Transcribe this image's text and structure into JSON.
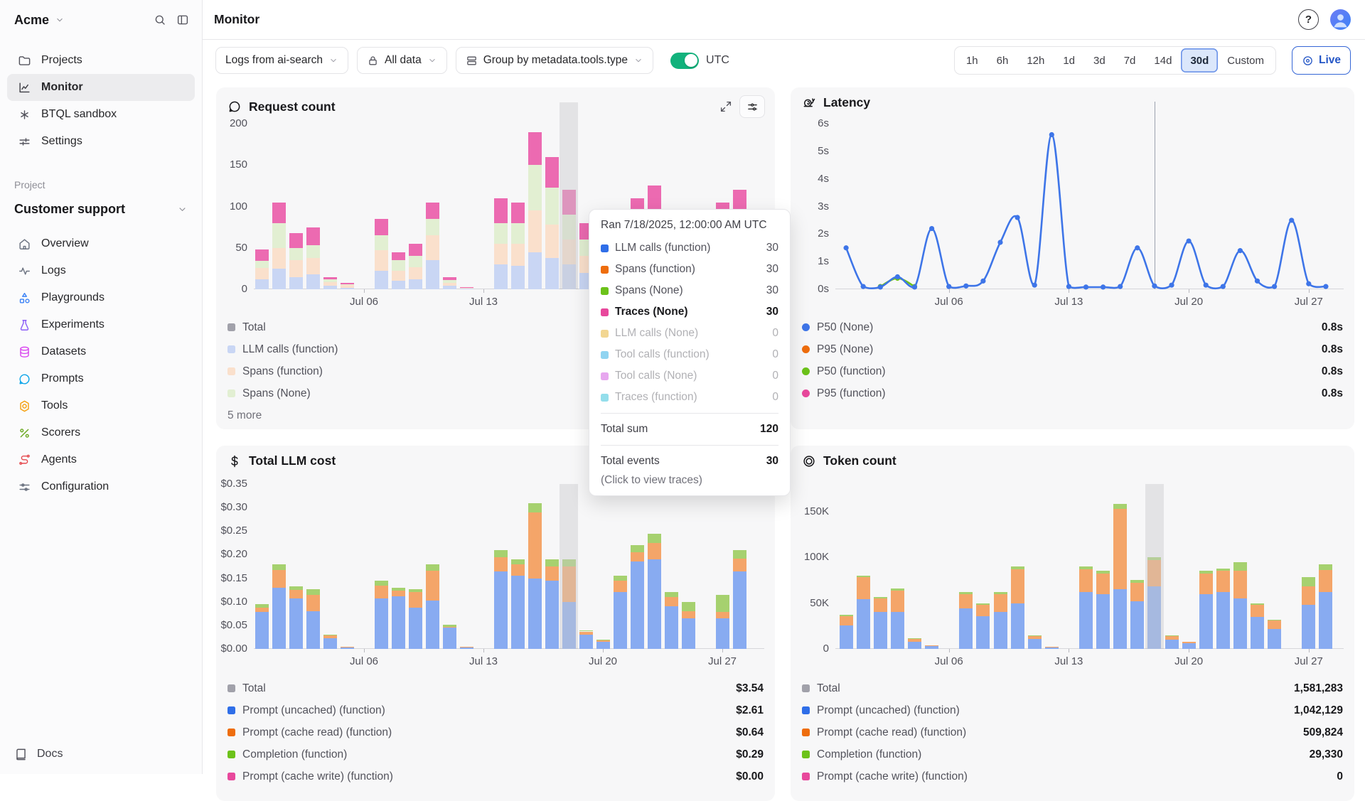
{
  "header": {
    "org": "Acme",
    "page_title": "Monitor"
  },
  "sidebar": {
    "nav": [
      {
        "label": "Projects",
        "icon": "folder-icon",
        "active": false,
        "color": "#52525b"
      },
      {
        "label": "Monitor",
        "icon": "chart-line-icon",
        "active": true,
        "color": "#3f3f46"
      },
      {
        "label": "BTQL sandbox",
        "icon": "asterisk-icon",
        "active": false,
        "color": "#52525b"
      },
      {
        "label": "Settings",
        "icon": "settings-sliders-icon",
        "active": false,
        "color": "#52525b"
      }
    ],
    "project_label": "Project",
    "project_name": "Customer support",
    "items": [
      {
        "label": "Overview",
        "icon": "home-icon",
        "color": "#6b7280"
      },
      {
        "label": "Logs",
        "icon": "pulse-icon",
        "color": "#6b7280"
      },
      {
        "label": "Playgrounds",
        "icon": "shapes-icon",
        "color": "#3b82f6"
      },
      {
        "label": "Experiments",
        "icon": "flask-icon",
        "color": "#8b5cf6"
      },
      {
        "label": "Datasets",
        "icon": "database-icon",
        "color": "#d946ef"
      },
      {
        "label": "Prompts",
        "icon": "chat-icon",
        "color": "#0ea5e9"
      },
      {
        "label": "Tools",
        "icon": "hexagon-icon",
        "color": "#f59e0b"
      },
      {
        "label": "Scorers",
        "icon": "percent-icon",
        "color": "#6ba821"
      },
      {
        "label": "Agents",
        "icon": "agents-icon",
        "color": "#e5484d"
      },
      {
        "label": "Configuration",
        "icon": "config-icon",
        "color": "#6b7280"
      }
    ],
    "docs_label": "Docs"
  },
  "filters": {
    "pills": [
      {
        "label": "Logs from ai-search",
        "icon": null,
        "chevron": true
      },
      {
        "label": "All data",
        "icon": "lock-icon",
        "chevron": true
      },
      {
        "label": "Group by metadata.tools.type",
        "icon": "rows-icon",
        "chevron": true
      }
    ],
    "utc_label": "UTC",
    "utc_on": true,
    "toggle_color": "#12b27c"
  },
  "time_range": {
    "options": [
      "1h",
      "6h",
      "12h",
      "1d",
      "3d",
      "7d",
      "14d",
      "30d",
      "Custom"
    ],
    "active": "30d",
    "live_label": "Live"
  },
  "cards": {
    "request": {
      "title": "Request count",
      "icon": "speech-bubble-icon",
      "legend": [
        {
          "label": "Total",
          "color": "#a1a1aa"
        },
        {
          "label": "LLM calls (function)",
          "color": "#c9d6f4"
        },
        {
          "label": "Spans (function)",
          "color": "#fae0cc"
        },
        {
          "label": "Spans (None)",
          "color": "#e2efd2"
        }
      ],
      "more_label": "5 more"
    },
    "latency": {
      "title": "Latency",
      "icon": "snail-icon",
      "legend": [
        {
          "label": "P50 (None)",
          "value": "0.8s",
          "color": "#3e75e8"
        },
        {
          "label": "P95 (None)",
          "value": "0.8s",
          "color": "#ee6d0d"
        },
        {
          "label": "P50 (function)",
          "value": "0.8s",
          "color": "#6cc21a"
        },
        {
          "label": "P95 (function)",
          "value": "0.8s",
          "color": "#e8489c"
        }
      ]
    },
    "cost": {
      "title": "Total LLM cost",
      "icon": "dollar-icon",
      "legend": [
        {
          "label": "Total",
          "value": "$3.54",
          "color": "#a1a1aa"
        },
        {
          "label": "Prompt (uncached) (function)",
          "value": "$2.61",
          "color": "#2f6ee8"
        },
        {
          "label": "Prompt (cache read) (function)",
          "value": "$0.64",
          "color": "#ee6d0d"
        },
        {
          "label": "Completion (function)",
          "value": "$0.29",
          "color": "#6cc21a"
        },
        {
          "label": "Prompt (cache write) (function)",
          "value": "$0.00",
          "color": "#e8489c"
        }
      ]
    },
    "token": {
      "title": "Token count",
      "icon": "coin-icon",
      "legend": [
        {
          "label": "Total",
          "value": "1,581,283",
          "color": "#a1a1aa"
        },
        {
          "label": "Prompt (uncached) (function)",
          "value": "1,042,129",
          "color": "#2f6ee8"
        },
        {
          "label": "Prompt (cache read) (function)",
          "value": "509,824",
          "color": "#ee6d0d"
        },
        {
          "label": "Completion (function)",
          "value": "29,330",
          "color": "#6cc21a"
        },
        {
          "label": "Prompt (cache write) (function)",
          "value": "0",
          "color": "#e8489c"
        }
      ]
    }
  },
  "tooltip": {
    "title": "Ran 7/18/2025, 12:00:00 AM UTC",
    "rows": [
      {
        "label": "LLM calls (function)",
        "value": "30",
        "color": "#2f6ee8",
        "state": "normal"
      },
      {
        "label": "Spans (function)",
        "value": "30",
        "color": "#ee6d0d",
        "state": "normal"
      },
      {
        "label": "Spans (None)",
        "value": "30",
        "color": "#6cc21a",
        "state": "normal"
      },
      {
        "label": "Traces (None)",
        "value": "30",
        "color": "#e8489c",
        "state": "active"
      },
      {
        "label": "LLM calls (None)",
        "value": "0",
        "color": "#e3a50f",
        "state": "dimmed"
      },
      {
        "label": "Tool calls (function)",
        "value": "0",
        "color": "#0ca2e2",
        "state": "dimmed"
      },
      {
        "label": "Tool calls (None)",
        "value": "0",
        "color": "#cb3ddd",
        "state": "dimmed"
      },
      {
        "label": "Traces (function)",
        "value": "0",
        "color": "#14b8d4",
        "state": "dimmed"
      }
    ],
    "total_sum_label": "Total sum",
    "total_sum": "120",
    "total_events_label": "Total events",
    "total_events": "30",
    "hint": "(Click to view traces)"
  },
  "chart_data": [
    {
      "id": "request-count",
      "type": "bar",
      "title": "Request count",
      "x_start_date": "Jun 29",
      "x_tick_labels": [
        "Jul 06",
        "Jul 13",
        "Jul 20",
        "Jul 27"
      ],
      "x_tick_days": [
        7,
        14,
        21,
        28
      ],
      "ylim": [
        0,
        200
      ],
      "y_ticks": [
        {
          "value": 0,
          "label": "0"
        },
        {
          "value": 50,
          "label": "50"
        },
        {
          "value": 100,
          "label": "100"
        },
        {
          "value": 150,
          "label": "150"
        },
        {
          "value": 200,
          "label": "200"
        }
      ],
      "hover_day": 19,
      "series": [
        {
          "name": "LLM calls (function)",
          "color": "#c9d6f4",
          "values": [
            0,
            12,
            25,
            15,
            18,
            4,
            2,
            0,
            22,
            10,
            12,
            35,
            4,
            1,
            0,
            30,
            28,
            45,
            38,
            30,
            20,
            25,
            18,
            28,
            32,
            13,
            8,
            0,
            26,
            30
          ]
        },
        {
          "name": "Spans (function)",
          "color": "#fae0cc",
          "values": [
            0,
            14,
            25,
            20,
            20,
            5,
            3,
            0,
            25,
            12,
            15,
            30,
            4,
            1,
            0,
            25,
            27,
            50,
            40,
            30,
            20,
            24,
            17,
            27,
            31,
            12,
            7,
            0,
            26,
            30
          ]
        },
        {
          "name": "Spans (None)",
          "color": "#e2efd2",
          "values": [
            0,
            8,
            30,
            15,
            15,
            3,
            1,
            0,
            18,
            13,
            13,
            20,
            3,
            0,
            0,
            25,
            25,
            55,
            45,
            30,
            20,
            23,
            18,
            28,
            31,
            13,
            8,
            0,
            27,
            30
          ]
        },
        {
          "name": "Traces (None)",
          "color": "#ec6ab1",
          "values": [
            0,
            14,
            25,
            18,
            22,
            3,
            2,
            0,
            20,
            10,
            15,
            20,
            4,
            1,
            0,
            30,
            25,
            40,
            37,
            30,
            20,
            23,
            17,
            27,
            31,
            12,
            7,
            0,
            26,
            30
          ]
        }
      ]
    },
    {
      "id": "latency",
      "type": "line",
      "title": "Latency",
      "unit": "s",
      "x_start_date": "Jun 29",
      "x_tick_labels": [
        "Jul 06",
        "Jul 13",
        "Jul 20",
        "Jul 27"
      ],
      "x_tick_days": [
        7,
        14,
        21,
        28
      ],
      "ylim": [
        0,
        6
      ],
      "y_ticks": [
        {
          "value": 0,
          "label": "0s"
        },
        {
          "value": 1,
          "label": "1s"
        },
        {
          "value": 2,
          "label": "2s"
        },
        {
          "value": 3,
          "label": "3s"
        },
        {
          "value": 4,
          "label": "4s"
        },
        {
          "value": 5,
          "label": "5s"
        },
        {
          "value": 6,
          "label": "6s"
        }
      ],
      "cursor_day": 19,
      "series": [
        {
          "name": "P50 (function)",
          "color": "#6cc21a",
          "values": [
            null,
            null,
            null,
            0.1,
            0.4,
            0.1,
            null,
            null,
            null,
            null,
            null,
            null,
            null,
            null,
            null,
            null,
            null,
            null,
            null,
            null,
            null,
            null,
            null,
            null,
            null,
            null,
            null,
            null,
            null,
            null
          ]
        },
        {
          "name": "P50 (None)",
          "color": "#3e75e8",
          "values": [
            null,
            1.5,
            0.1,
            0.08,
            0.45,
            0.08,
            2.2,
            0.1,
            0.12,
            0.3,
            1.7,
            2.6,
            0.15,
            5.6,
            0.1,
            0.08,
            0.08,
            0.1,
            1.5,
            0.12,
            0.15,
            1.75,
            0.15,
            0.1,
            1.4,
            0.3,
            0.1,
            2.5,
            0.2,
            0.1
          ]
        }
      ]
    },
    {
      "id": "llm-cost",
      "type": "bar",
      "title": "Total LLM cost",
      "x_start_date": "Jun 29",
      "x_tick_labels": [
        "Jul 06",
        "Jul 13",
        "Jul 20",
        "Jul 27"
      ],
      "x_tick_days": [
        7,
        14,
        21,
        28
      ],
      "ylim": [
        0,
        0.35
      ],
      "y_ticks": [
        {
          "value": 0,
          "label": "$0.00"
        },
        {
          "value": 0.05,
          "label": "$0.05"
        },
        {
          "value": 0.1,
          "label": "$0.10"
        },
        {
          "value": 0.15,
          "label": "$0.15"
        },
        {
          "value": 0.2,
          "label": "$0.20"
        },
        {
          "value": 0.25,
          "label": "$0.25"
        },
        {
          "value": 0.3,
          "label": "$0.30"
        },
        {
          "value": 0.35,
          "label": "$0.35"
        }
      ],
      "hover_day": 19,
      "series": [
        {
          "name": "Prompt (uncached) (function)",
          "color": "#88abf1",
          "values": [
            0,
            0.078,
            0.13,
            0.107,
            0.08,
            0.022,
            0.004,
            0,
            0.107,
            0.112,
            0.088,
            0.103,
            0.045,
            0.004,
            0,
            0.165,
            0.155,
            0.15,
            0.145,
            0.1,
            0.03,
            0.015,
            0.12,
            0.185,
            0.19,
            0.09,
            0.065,
            0,
            0.065,
            0.165
          ]
        },
        {
          "name": "Prompt (cache read) (function)",
          "color": "#f4a569",
          "values": [
            0,
            0.01,
            0.037,
            0.018,
            0.035,
            0.006,
            0.001,
            0,
            0.027,
            0.012,
            0.032,
            0.063,
            0.002,
            0.001,
            0,
            0.03,
            0.025,
            0.14,
            0.03,
            0.075,
            0.007,
            0.004,
            0.025,
            0.02,
            0.035,
            0.02,
            0.015,
            0,
            0.013,
            0.027
          ]
        },
        {
          "name": "Completion (function)",
          "color": "#a6d16f",
          "values": [
            0,
            0.007,
            0.013,
            0.008,
            0.012,
            0.002,
            0,
            0,
            0.011,
            0.006,
            0.007,
            0.014,
            0.005,
            0,
            0,
            0.015,
            0.01,
            0.02,
            0.015,
            0.015,
            0.003,
            0.001,
            0.01,
            0.015,
            0.02,
            0.01,
            0.02,
            0,
            0.037,
            0.018
          ]
        }
      ]
    },
    {
      "id": "token-count",
      "type": "bar",
      "title": "Token count",
      "x_start_date": "Jun 29",
      "x_tick_labels": [
        "Jul 06",
        "Jul 13",
        "Jul 20",
        "Jul 27"
      ],
      "x_tick_days": [
        7,
        14,
        21,
        28
      ],
      "ylim": [
        0,
        180000
      ],
      "y_ticks": [
        {
          "value": 0,
          "label": "0"
        },
        {
          "value": 50000,
          "label": "50K"
        },
        {
          "value": 100000,
          "label": "100K"
        },
        {
          "value": 150000,
          "label": "150K"
        }
      ],
      "hover_day": 19,
      "series": [
        {
          "name": "Prompt (uncached) (function)",
          "color": "#88abf1",
          "values": [
            0,
            26000,
            54000,
            40000,
            40000,
            8000,
            3000,
            0,
            44000,
            36000,
            40000,
            50000,
            11000,
            1500,
            0,
            62000,
            60000,
            65000,
            52000,
            68000,
            10000,
            6000,
            60000,
            62000,
            55000,
            35000,
            22000,
            0,
            48000,
            62000
          ]
        },
        {
          "name": "Prompt (cache read) (function)",
          "color": "#f4a569",
          "values": [
            0,
            10000,
            24000,
            15000,
            24000,
            3500,
            1000,
            0,
            16000,
            12000,
            20000,
            37000,
            3500,
            500,
            0,
            25000,
            22000,
            88000,
            20000,
            29000,
            4000,
            2000,
            22000,
            23000,
            30000,
            13000,
            9000,
            0,
            20000,
            24000
          ]
        },
        {
          "name": "Completion (function)",
          "color": "#a6d16f",
          "values": [
            0,
            1000,
            2000,
            2000,
            2000,
            500,
            0,
            0,
            2000,
            2000,
            2000,
            3000,
            500,
            0,
            0,
            3000,
            3000,
            5000,
            3000,
            3000,
            1000,
            0,
            3000,
            3000,
            10000,
            2000,
            1000,
            0,
            10000,
            6000
          ]
        }
      ]
    }
  ]
}
